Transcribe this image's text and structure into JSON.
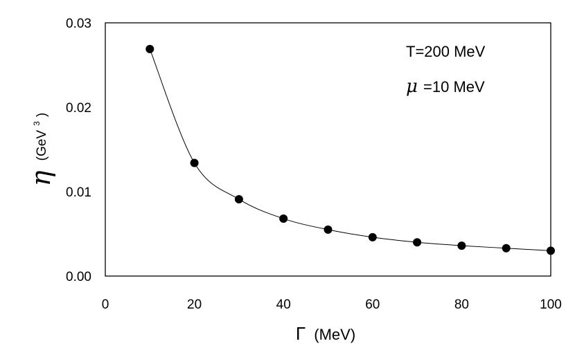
{
  "chart_data": {
    "type": "scatter",
    "x": [
      10,
      20,
      30,
      40,
      50,
      60,
      70,
      80,
      90,
      100
    ],
    "y": [
      0.0269,
      0.0134,
      0.0091,
      0.0068,
      0.0055,
      0.0046,
      0.004,
      0.0036,
      0.0033,
      0.003
    ],
    "smooth_line": true,
    "xlim": [
      0,
      100
    ],
    "ylim": [
      0,
      0.03
    ],
    "xticks": [
      "0",
      "20",
      "40",
      "60",
      "80",
      "100"
    ],
    "yticks": [
      "0.00",
      "0.01",
      "0.02",
      "0.03"
    ],
    "xlabel": {
      "symbol": "Γ",
      "unit": "(MeV)"
    },
    "ylabel": {
      "symbol": "η",
      "unit": "(GeV",
      "exponent": "3",
      "close": ")"
    },
    "annotations": {
      "temperature": "T=200 MeV",
      "mu_symbol": "μ",
      "mu_value": "=10 MeV"
    },
    "grid": false,
    "colors": {
      "marker": "#000000",
      "line": "#000000"
    }
  }
}
